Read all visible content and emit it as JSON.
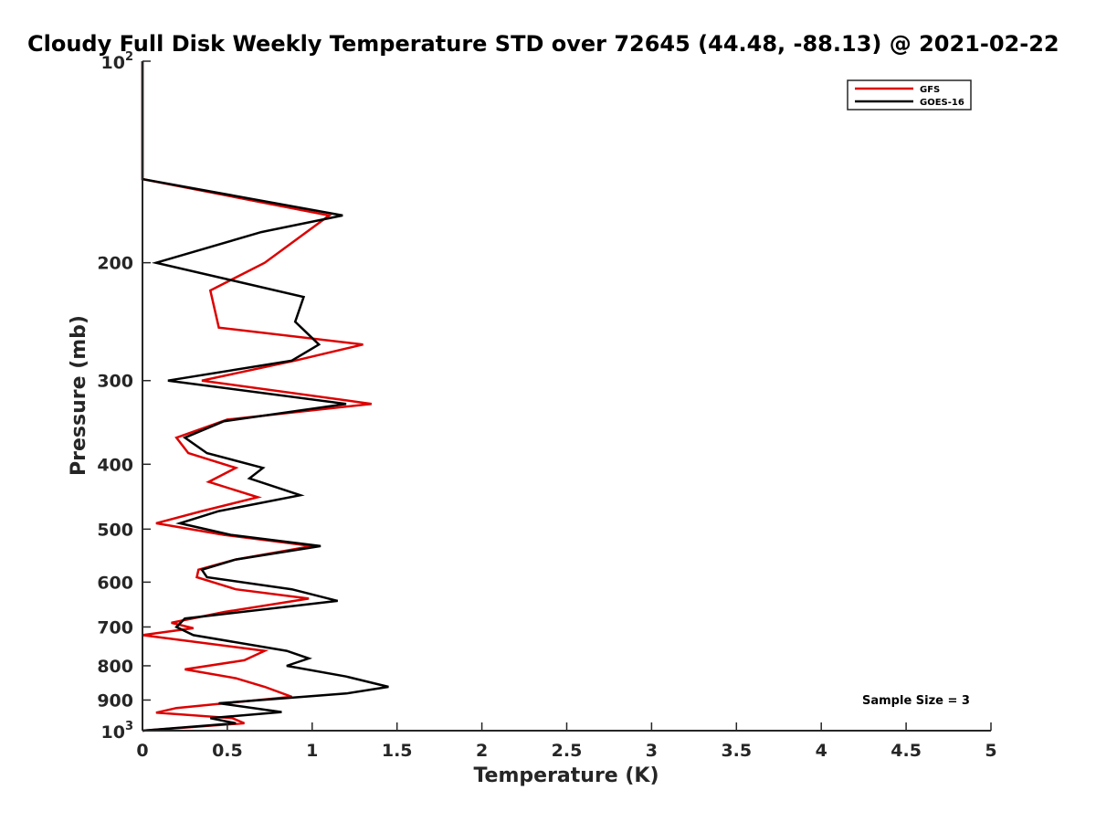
{
  "chart_data": {
    "type": "line",
    "title": "Cloudy Full Disk Weekly Temperature STD over 72645 (44.48, -88.13) @ 2021-02-22",
    "xlabel": "Temperature (K)",
    "ylabel": "Pressure (mb)",
    "xlim": [
      0,
      5
    ],
    "ylim": [
      100,
      1000
    ],
    "y_scale": "log",
    "y_reversed": true,
    "grid": false,
    "legend_position": "top-right",
    "x_ticks": [
      "0",
      "0.5",
      "1",
      "1.5",
      "2",
      "2.5",
      "3",
      "3.5",
      "4",
      "4.5",
      "5"
    ],
    "y_ticks": [
      {
        "value": 100,
        "base": "10",
        "exp": "2"
      },
      {
        "value": 200,
        "label": "200"
      },
      {
        "value": 300,
        "label": "300"
      },
      {
        "value": 400,
        "label": "400"
      },
      {
        "value": 500,
        "label": "500"
      },
      {
        "value": 600,
        "label": "600"
      },
      {
        "value": 700,
        "label": "700"
      },
      {
        "value": 800,
        "label": "800"
      },
      {
        "value": 900,
        "label": "900"
      },
      {
        "value": 1000,
        "base": "10",
        "exp": "3"
      }
    ],
    "annotation": "Sample Size = 3",
    "series": [
      {
        "name": "GFS",
        "color": "#dd0000",
        "points": [
          [
            0.0,
            100
          ],
          [
            0.0,
            150
          ],
          [
            1.1,
            170
          ],
          [
            0.72,
            200
          ],
          [
            0.4,
            220
          ],
          [
            0.45,
            250
          ],
          [
            1.3,
            265
          ],
          [
            0.9,
            280
          ],
          [
            0.35,
            300
          ],
          [
            1.35,
            325
          ],
          [
            0.5,
            343
          ],
          [
            0.2,
            365
          ],
          [
            0.27,
            385
          ],
          [
            0.55,
            405
          ],
          [
            0.39,
            425
          ],
          [
            0.68,
            448
          ],
          [
            0.35,
            470
          ],
          [
            0.08,
            490
          ],
          [
            0.48,
            510
          ],
          [
            1.0,
            530
          ],
          [
            0.55,
            555
          ],
          [
            0.33,
            575
          ],
          [
            0.32,
            590
          ],
          [
            0.55,
            615
          ],
          [
            0.98,
            635
          ],
          [
            0.48,
            665
          ],
          [
            0.17,
            690
          ],
          [
            0.3,
            703
          ],
          [
            0.0,
            720
          ],
          [
            0.72,
            760
          ],
          [
            0.6,
            785
          ],
          [
            0.25,
            810
          ],
          [
            0.55,
            835
          ],
          [
            0.72,
            860
          ],
          [
            0.88,
            890
          ],
          [
            0.2,
            925
          ],
          [
            0.08,
            940
          ],
          [
            0.53,
            958
          ],
          [
            0.6,
            975
          ],
          [
            0.0,
            1000
          ]
        ]
      },
      {
        "name": "GOES-16",
        "color": "#000000",
        "points": [
          [
            0.0,
            100
          ],
          [
            0.0,
            150
          ],
          [
            1.18,
            170
          ],
          [
            0.7,
            180
          ],
          [
            0.08,
            200
          ],
          [
            0.95,
            225
          ],
          [
            0.9,
            245
          ],
          [
            1.04,
            265
          ],
          [
            0.88,
            280
          ],
          [
            0.15,
            300
          ],
          [
            1.2,
            325
          ],
          [
            0.48,
            345
          ],
          [
            0.25,
            365
          ],
          [
            0.38,
            385
          ],
          [
            0.71,
            405
          ],
          [
            0.63,
            420
          ],
          [
            0.93,
            445
          ],
          [
            0.45,
            470
          ],
          [
            0.22,
            490
          ],
          [
            0.52,
            510
          ],
          [
            1.05,
            530
          ],
          [
            0.55,
            555
          ],
          [
            0.35,
            575
          ],
          [
            0.38,
            590
          ],
          [
            0.88,
            615
          ],
          [
            1.15,
            640
          ],
          [
            0.25,
            680
          ],
          [
            0.2,
            700
          ],
          [
            0.3,
            720
          ],
          [
            0.85,
            760
          ],
          [
            0.98,
            780
          ],
          [
            0.85,
            800
          ],
          [
            1.2,
            830
          ],
          [
            1.45,
            860
          ],
          [
            1.2,
            880
          ],
          [
            0.45,
            910
          ],
          [
            0.82,
            938
          ],
          [
            0.4,
            958
          ],
          [
            0.55,
            975
          ],
          [
            0.0,
            1000
          ]
        ]
      }
    ]
  }
}
